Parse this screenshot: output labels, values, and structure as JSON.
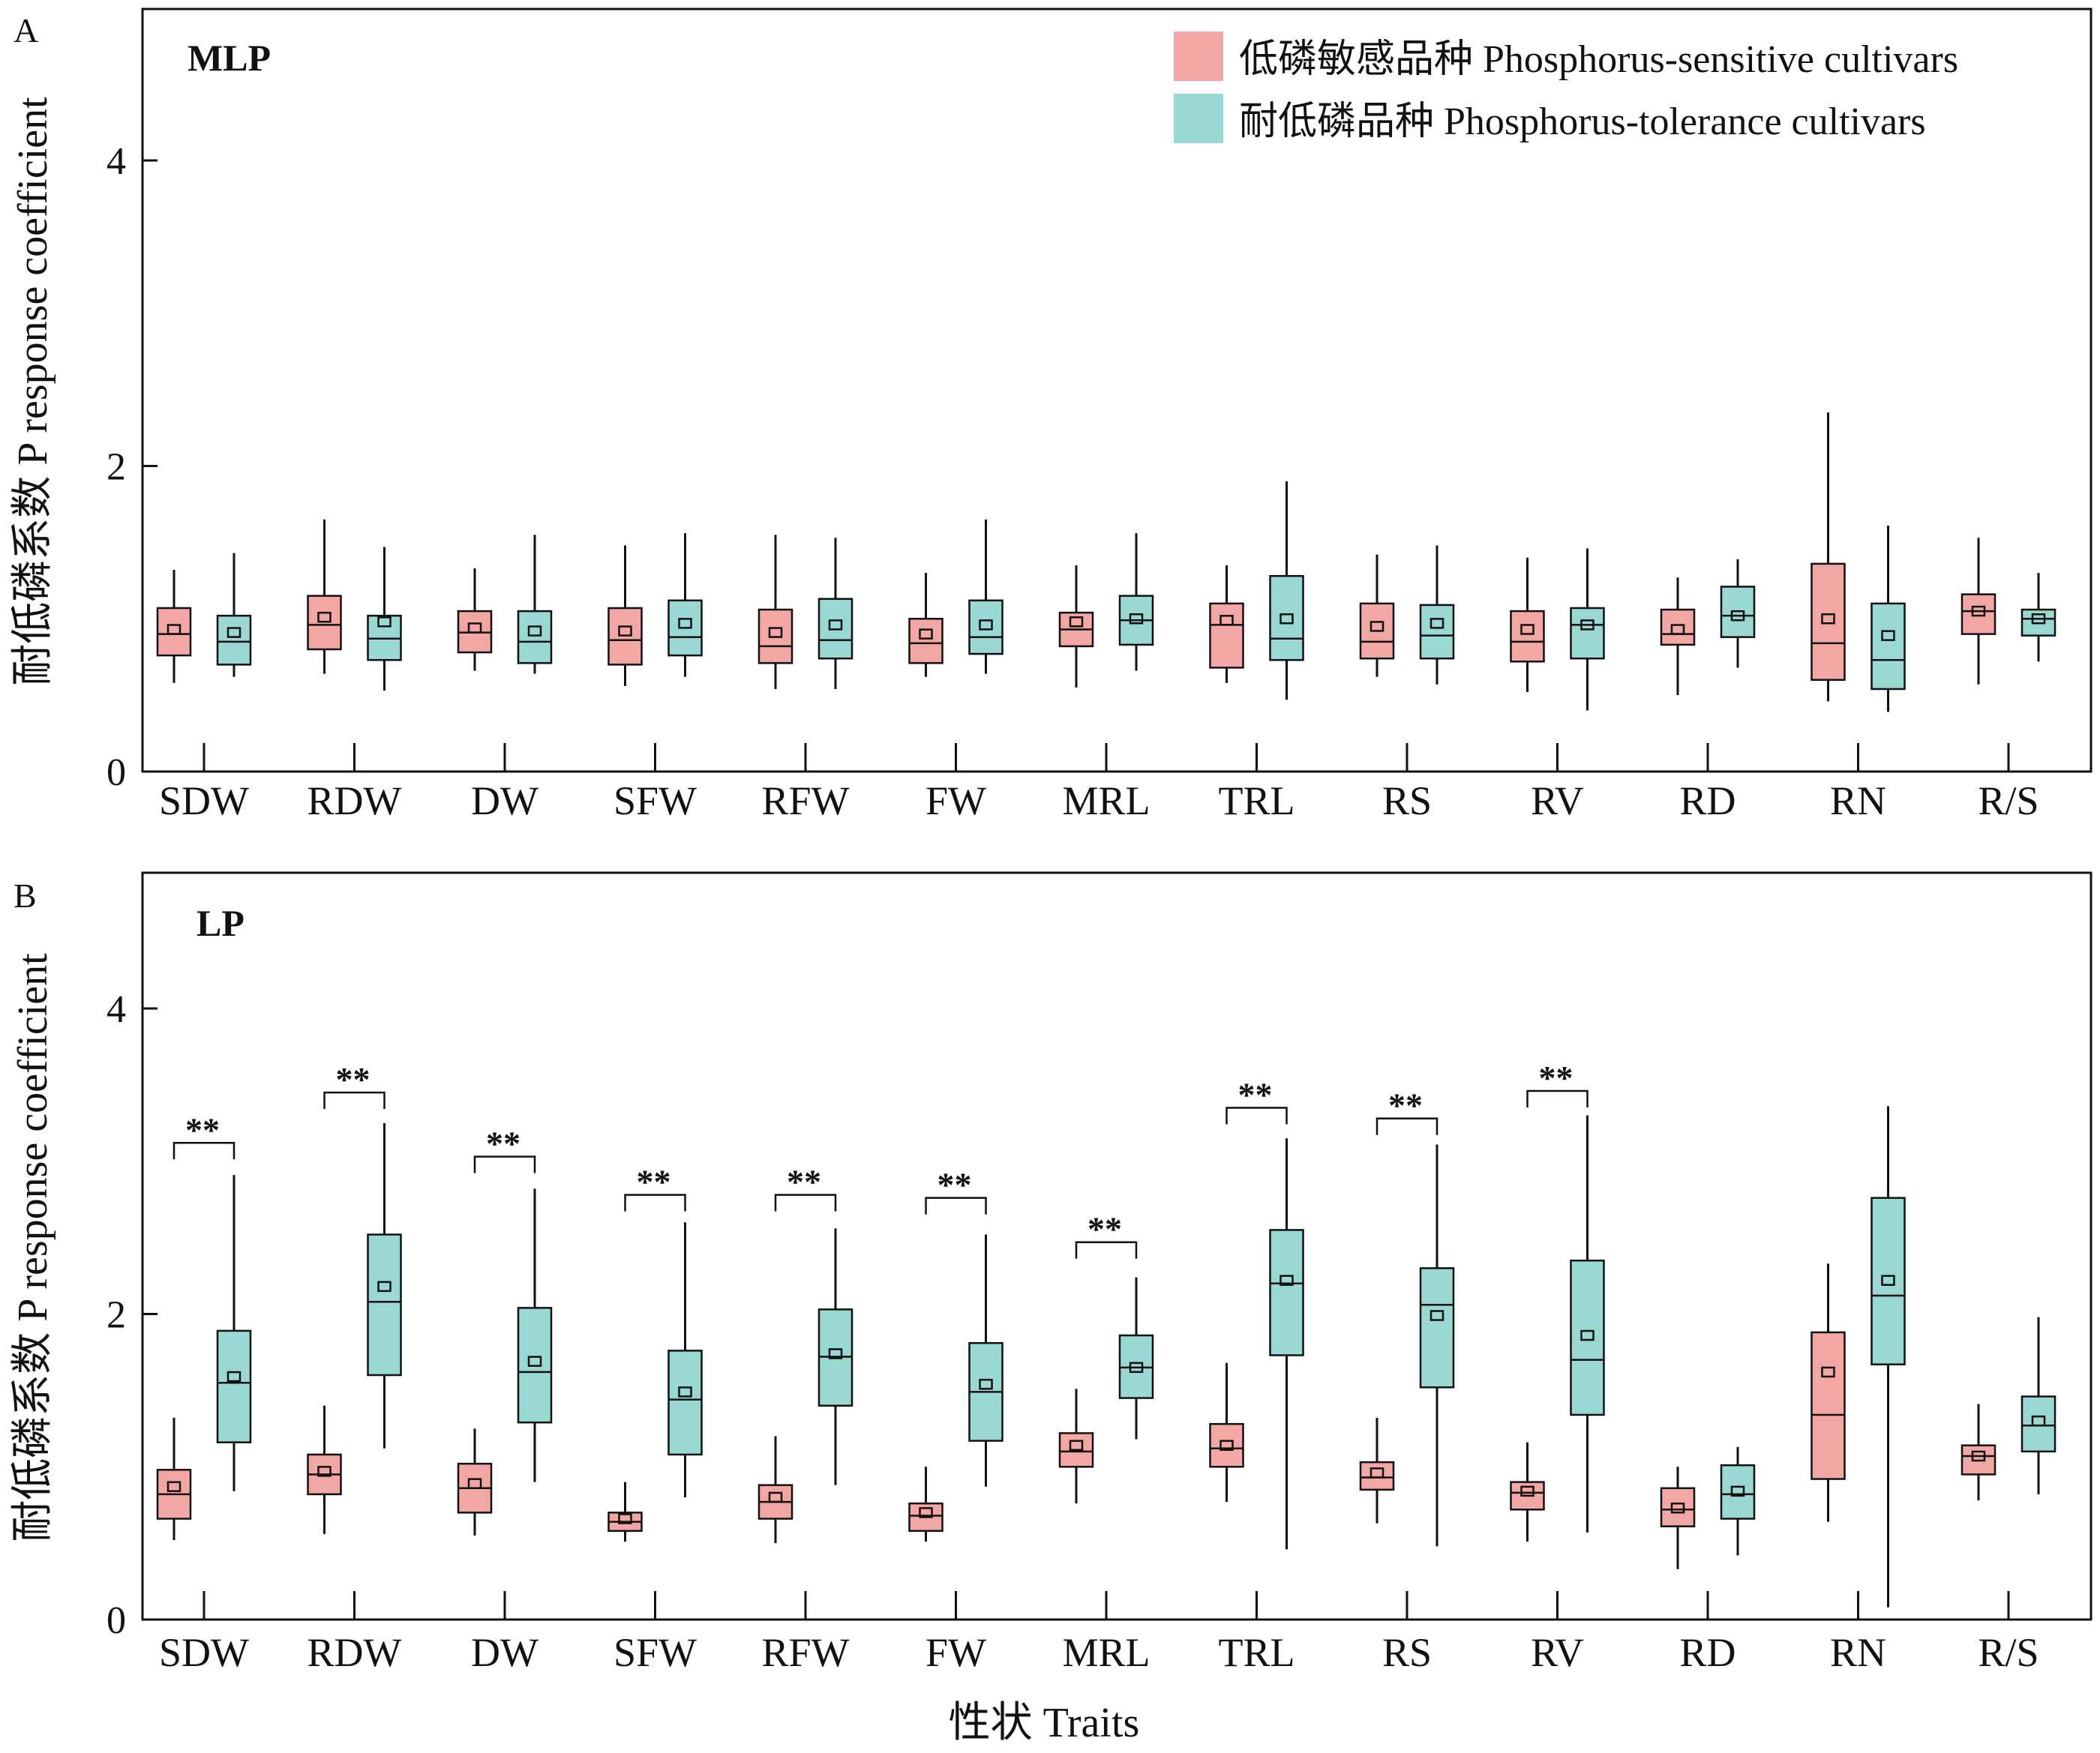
{
  "y_axis_label": "耐低磷系数  P response coefficient",
  "x_axis_label": "性状  Traits",
  "legend": [
    {
      "label": "低磷敏感品种  Phosphorus-sensitive cultivars",
      "color": "#F3A7A5"
    },
    {
      "label": "耐低磷品种 Phosphorus-tolerance cultivars",
      "color": "#99D8D3"
    }
  ],
  "colors": {
    "sensitive": "#F3A7A5",
    "tolerant": "#99D8D3",
    "axis": "#111111"
  },
  "chart_data": [
    {
      "type": "box",
      "panel": "A",
      "title": "MLP",
      "categories": [
        "SDW",
        "RDW",
        "DW",
        "SFW",
        "RFW",
        "FW",
        "MRL",
        "TRL",
        "RS",
        "RV",
        "RD",
        "RN",
        "R/S"
      ],
      "ylim": [
        0,
        4.9
      ],
      "yticks": [
        0,
        2,
        4
      ],
      "significance": [],
      "series": [
        {
          "name": "低磷敏感品种  Phosphorus-sensitive cultivars",
          "color": "#F3A7A5",
          "boxes": [
            {
              "min": 0.58,
              "q1": 0.76,
              "median": 0.9,
              "q3": 1.07,
              "max": 1.32,
              "mean": 0.93
            },
            {
              "min": 0.64,
              "q1": 0.8,
              "median": 0.96,
              "q3": 1.15,
              "max": 1.65,
              "mean": 1.01
            },
            {
              "min": 0.66,
              "q1": 0.78,
              "median": 0.91,
              "q3": 1.05,
              "max": 1.33,
              "mean": 0.94
            },
            {
              "min": 0.56,
              "q1": 0.7,
              "median": 0.86,
              "q3": 1.07,
              "max": 1.48,
              "mean": 0.92
            },
            {
              "min": 0.54,
              "q1": 0.71,
              "median": 0.82,
              "q3": 1.06,
              "max": 1.55,
              "mean": 0.91
            },
            {
              "min": 0.62,
              "q1": 0.71,
              "median": 0.84,
              "q3": 1.0,
              "max": 1.3,
              "mean": 0.9
            },
            {
              "min": 0.55,
              "q1": 0.82,
              "median": 0.93,
              "q3": 1.04,
              "max": 1.35,
              "mean": 0.98
            },
            {
              "min": 0.58,
              "q1": 0.68,
              "median": 0.96,
              "q3": 1.1,
              "max": 1.35,
              "mean": 0.99
            },
            {
              "min": 0.62,
              "q1": 0.74,
              "median": 0.85,
              "q3": 1.1,
              "max": 1.42,
              "mean": 0.95
            },
            {
              "min": 0.52,
              "q1": 0.72,
              "median": 0.85,
              "q3": 1.05,
              "max": 1.4,
              "mean": 0.93
            },
            {
              "min": 0.5,
              "q1": 0.83,
              "median": 0.9,
              "q3": 1.06,
              "max": 1.27,
              "mean": 0.93
            },
            {
              "min": 0.46,
              "q1": 0.6,
              "median": 0.84,
              "q3": 1.36,
              "max": 2.35,
              "mean": 1.0
            },
            {
              "min": 0.57,
              "q1": 0.9,
              "median": 1.05,
              "q3": 1.16,
              "max": 1.53,
              "mean": 1.05
            }
          ]
        },
        {
          "name": "耐低磷品种 Phosphorus-tolerance cultivars",
          "color": "#99D8D3",
          "boxes": [
            {
              "min": 0.62,
              "q1": 0.7,
              "median": 0.85,
              "q3": 1.02,
              "max": 1.43,
              "mean": 0.91
            },
            {
              "min": 0.53,
              "q1": 0.73,
              "median": 0.87,
              "q3": 1.02,
              "max": 1.47,
              "mean": 0.98
            },
            {
              "min": 0.64,
              "q1": 0.71,
              "median": 0.85,
              "q3": 1.05,
              "max": 1.55,
              "mean": 0.92
            },
            {
              "min": 0.62,
              "q1": 0.76,
              "median": 0.88,
              "q3": 1.12,
              "max": 1.56,
              "mean": 0.97
            },
            {
              "min": 0.54,
              "q1": 0.74,
              "median": 0.86,
              "q3": 1.13,
              "max": 1.53,
              "mean": 0.96
            },
            {
              "min": 0.64,
              "q1": 0.77,
              "median": 0.88,
              "q3": 1.12,
              "max": 1.65,
              "mean": 0.96
            },
            {
              "min": 0.66,
              "q1": 0.83,
              "median": 0.99,
              "q3": 1.15,
              "max": 1.56,
              "mean": 1.0
            },
            {
              "min": 0.47,
              "q1": 0.73,
              "median": 0.87,
              "q3": 1.28,
              "max": 1.9,
              "mean": 1.0
            },
            {
              "min": 0.57,
              "q1": 0.74,
              "median": 0.89,
              "q3": 1.09,
              "max": 1.48,
              "mean": 0.97
            },
            {
              "min": 0.4,
              "q1": 0.74,
              "median": 0.96,
              "q3": 1.07,
              "max": 1.46,
              "mean": 0.96
            },
            {
              "min": 0.68,
              "q1": 0.88,
              "median": 1.02,
              "q3": 1.21,
              "max": 1.39,
              "mean": 1.02
            },
            {
              "min": 0.39,
              "q1": 0.54,
              "median": 0.73,
              "q3": 1.1,
              "max": 1.61,
              "mean": 0.89
            },
            {
              "min": 0.72,
              "q1": 0.89,
              "median": 1.0,
              "q3": 1.06,
              "max": 1.3,
              "mean": 1.0
            }
          ]
        }
      ]
    },
    {
      "type": "box",
      "panel": "B",
      "title": "LP",
      "categories": [
        "SDW",
        "RDW",
        "DW",
        "SFW",
        "RFW",
        "FW",
        "MRL",
        "TRL",
        "RS",
        "RV",
        "RD",
        "RN",
        "R/S"
      ],
      "ylim": [
        0,
        4.9
      ],
      "yticks": [
        0,
        2,
        4
      ],
      "significance": [
        {
          "category": "SDW",
          "label": "**",
          "level": 3.12
        },
        {
          "category": "RDW",
          "label": "**",
          "level": 3.45
        },
        {
          "category": "DW",
          "label": "**",
          "level": 3.03
        },
        {
          "category": "SFW",
          "label": "**",
          "level": 2.78
        },
        {
          "category": "RFW",
          "label": "**",
          "level": 2.78
        },
        {
          "category": "FW",
          "label": "**",
          "level": 2.76
        },
        {
          "category": "MRL",
          "label": "**",
          "level": 2.47
        },
        {
          "category": "TRL",
          "label": "**",
          "level": 3.35
        },
        {
          "category": "RS",
          "label": "**",
          "level": 3.28
        },
        {
          "category": "RV",
          "label": "**",
          "level": 3.46
        }
      ],
      "series": [
        {
          "name": "低磷敏感品种  Phosphorus-sensitive cultivars",
          "color": "#F3A7A5",
          "boxes": [
            {
              "min": 0.52,
              "q1": 0.66,
              "median": 0.82,
              "q3": 0.98,
              "max": 1.32,
              "mean": 0.87
            },
            {
              "min": 0.56,
              "q1": 0.82,
              "median": 0.95,
              "q3": 1.08,
              "max": 1.4,
              "mean": 0.97
            },
            {
              "min": 0.55,
              "q1": 0.7,
              "median": 0.86,
              "q3": 1.02,
              "max": 1.25,
              "mean": 0.89
            },
            {
              "min": 0.51,
              "q1": 0.58,
              "median": 0.64,
              "q3": 0.7,
              "max": 0.9,
              "mean": 0.66
            },
            {
              "min": 0.5,
              "q1": 0.66,
              "median": 0.77,
              "q3": 0.88,
              "max": 1.2,
              "mean": 0.8
            },
            {
              "min": 0.51,
              "q1": 0.58,
              "median": 0.68,
              "q3": 0.76,
              "max": 1.0,
              "mean": 0.7
            },
            {
              "min": 0.76,
              "q1": 1.0,
              "median": 1.1,
              "q3": 1.22,
              "max": 1.51,
              "mean": 1.14
            },
            {
              "min": 0.77,
              "q1": 1.0,
              "median": 1.12,
              "q3": 1.28,
              "max": 1.68,
              "mean": 1.14
            },
            {
              "min": 0.63,
              "q1": 0.85,
              "median": 0.93,
              "q3": 1.03,
              "max": 1.32,
              "mean": 0.96
            },
            {
              "min": 0.51,
              "q1": 0.72,
              "median": 0.83,
              "q3": 0.9,
              "max": 1.16,
              "mean": 0.84
            },
            {
              "min": 0.33,
              "q1": 0.61,
              "median": 0.72,
              "q3": 0.86,
              "max": 1.0,
              "mean": 0.73
            },
            {
              "min": 0.64,
              "q1": 0.92,
              "median": 1.34,
              "q3": 1.88,
              "max": 2.33,
              "mean": 1.62
            },
            {
              "min": 0.78,
              "q1": 0.95,
              "median": 1.07,
              "q3": 1.14,
              "max": 1.41,
              "mean": 1.07
            }
          ]
        },
        {
          "name": "耐低磷品种 Phosphorus-tolerance cultivars",
          "color": "#99D8D3",
          "boxes": [
            {
              "min": 0.84,
              "q1": 1.16,
              "median": 1.55,
              "q3": 1.89,
              "max": 2.91,
              "mean": 1.59
            },
            {
              "min": 1.12,
              "q1": 1.6,
              "median": 2.08,
              "q3": 2.52,
              "max": 3.25,
              "mean": 2.18
            },
            {
              "min": 0.9,
              "q1": 1.29,
              "median": 1.62,
              "q3": 2.04,
              "max": 2.82,
              "mean": 1.69
            },
            {
              "min": 0.8,
              "q1": 1.08,
              "median": 1.44,
              "q3": 1.76,
              "max": 2.6,
              "mean": 1.49
            },
            {
              "min": 0.88,
              "q1": 1.4,
              "median": 1.72,
              "q3": 2.03,
              "max": 2.56,
              "mean": 1.74
            },
            {
              "min": 0.87,
              "q1": 1.17,
              "median": 1.49,
              "q3": 1.81,
              "max": 2.52,
              "mean": 1.54
            },
            {
              "min": 1.18,
              "q1": 1.45,
              "median": 1.65,
              "q3": 1.86,
              "max": 2.24,
              "mean": 1.65
            },
            {
              "min": 0.46,
              "q1": 1.73,
              "median": 2.2,
              "q3": 2.55,
              "max": 3.15,
              "mean": 2.22
            },
            {
              "min": 0.48,
              "q1": 1.52,
              "median": 2.06,
              "q3": 2.3,
              "max": 3.11,
              "mean": 1.99
            },
            {
              "min": 0.57,
              "q1": 1.34,
              "median": 1.7,
              "q3": 2.35,
              "max": 3.3,
              "mean": 1.86
            },
            {
              "min": 0.42,
              "q1": 0.66,
              "median": 0.82,
              "q3": 1.01,
              "max": 1.13,
              "mean": 0.84
            },
            {
              "min": 0.08,
              "q1": 1.67,
              "median": 2.12,
              "q3": 2.76,
              "max": 3.36,
              "mean": 2.22
            },
            {
              "min": 0.82,
              "q1": 1.1,
              "median": 1.27,
              "q3": 1.46,
              "max": 1.98,
              "mean": 1.3
            }
          ]
        }
      ]
    }
  ]
}
